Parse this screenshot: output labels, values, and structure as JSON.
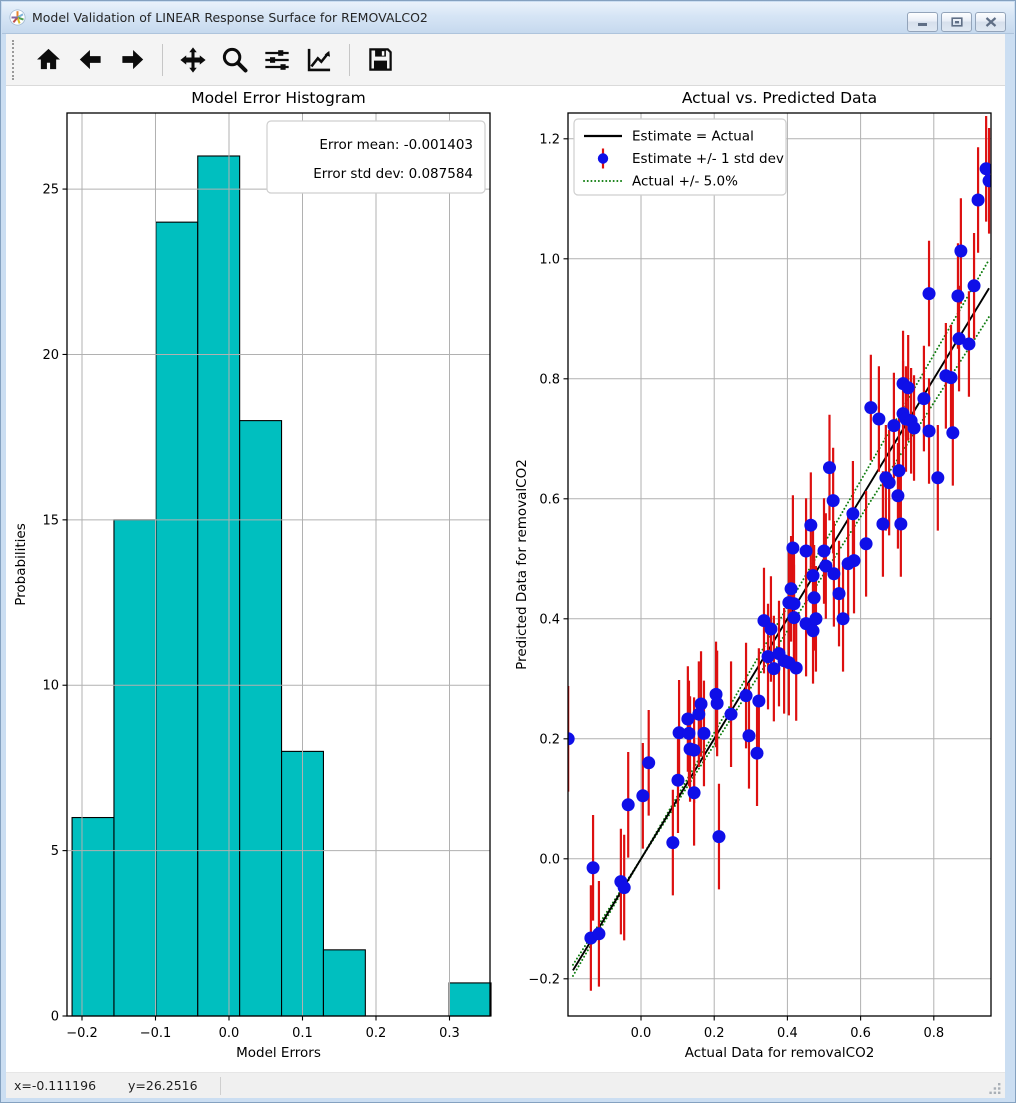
{
  "window": {
    "title": "Model Validation of LINEAR Response Surface for REMOVALCO2",
    "controls": {
      "minimize": "minimize",
      "maximize": "maximize",
      "close": "close"
    }
  },
  "toolbar": {
    "buttons": [
      {
        "name": "home",
        "icon": "home-icon"
      },
      {
        "name": "back",
        "icon": "back-arrow-icon"
      },
      {
        "name": "forward",
        "icon": "forward-arrow-icon"
      },
      {
        "name": "pan",
        "icon": "move-cross-icon"
      },
      {
        "name": "zoom",
        "icon": "magnifier-icon"
      },
      {
        "name": "configure-subplots",
        "icon": "sliders-icon"
      },
      {
        "name": "figure-options",
        "icon": "line-chart-icon"
      },
      {
        "name": "save",
        "icon": "floppy-disk-icon"
      }
    ]
  },
  "statusbar": {
    "x_readout": "x=-0.111196",
    "y_readout": "y=26.2516"
  },
  "chart_data": [
    {
      "type": "bar",
      "subtype": "histogram",
      "title": "Model Error Histogram",
      "xlabel": "Model Errors",
      "ylabel": "Probabilities",
      "bar_color": "#00bfbf",
      "edge_color": "#000000",
      "grid": true,
      "grid_above_bars": true,
      "xlim": [
        -0.2204,
        0.3551
      ],
      "ylim": [
        0,
        27.3
      ],
      "bin_start": -0.2135,
      "bin_width": 0.057,
      "counts": [
        6,
        15,
        24,
        26,
        18,
        8,
        2,
        0,
        0,
        1
      ],
      "xticks": [
        {
          "v": -0.2,
          "label": "−0.2"
        },
        {
          "v": -0.1,
          "label": "−0.1"
        },
        {
          "v": 0.0,
          "label": "0.0"
        },
        {
          "v": 0.1,
          "label": "0.1"
        },
        {
          "v": 0.2,
          "label": "0.2"
        },
        {
          "v": 0.3,
          "label": "0.3"
        }
      ],
      "yticks": [
        {
          "v": 0,
          "label": "0"
        },
        {
          "v": 5,
          "label": "5"
        },
        {
          "v": 10,
          "label": "10"
        },
        {
          "v": 15,
          "label": "15"
        },
        {
          "v": 20,
          "label": "20"
        },
        {
          "v": 25,
          "label": "25"
        }
      ],
      "annotation_lines": [
        "Error mean: -0.001403",
        "Error std dev: 0.087584"
      ],
      "stats": {
        "error_mean": -0.001403,
        "error_std_dev": 0.087584
      }
    },
    {
      "type": "scatter",
      "title": "Actual vs. Predicted Data",
      "xlabel": "Actual Data for removalCO2",
      "ylabel": "Predicted Data for removalCO2",
      "grid": true,
      "xlim": [
        -0.1995,
        0.9563
      ],
      "ylim": [
        -0.262,
        1.243
      ],
      "xticks": [
        {
          "v": 0.0,
          "label": "0.0"
        },
        {
          "v": 0.2,
          "label": "0.2"
        },
        {
          "v": 0.4,
          "label": "0.4"
        },
        {
          "v": 0.6,
          "label": "0.6"
        },
        {
          "v": 0.8,
          "label": "0.8"
        }
      ],
      "yticks": [
        {
          "v": -0.2,
          "label": "−0.2"
        },
        {
          "v": 0.0,
          "label": "0.0"
        },
        {
          "v": 0.2,
          "label": "0.2"
        },
        {
          "v": 0.4,
          "label": "0.4"
        },
        {
          "v": 0.6,
          "label": "0.6"
        },
        {
          "v": 0.8,
          "label": "0.8"
        },
        {
          "v": 1.0,
          "label": "1.0"
        },
        {
          "v": 1.2,
          "label": "1.2"
        }
      ],
      "legend": [
        {
          "label": "Estimate = Actual",
          "type": "line",
          "color": "#000000"
        },
        {
          "label": "Estimate +/- 1 std dev",
          "type": "errorbar",
          "color": "#0f0fe8",
          "err_color": "#dd1010"
        },
        {
          "label": "Actual +/- 5.0%",
          "type": "dotted",
          "color": "#0f7d0f"
        }
      ],
      "identity_line": {
        "x0": -0.186,
        "x1": 0.951,
        "color": "#000000"
      },
      "tolerance_band_pct": 5.0,
      "band_factors": [
        1.05,
        0.95
      ],
      "band_color": "#0f7d0f",
      "point_color": "#0f0fe8",
      "err_color": "#dd1010",
      "yerr": 0.088,
      "points": [
        [
          -0.199,
          0.2
        ],
        [
          -0.137,
          -0.132
        ],
        [
          -0.115,
          -0.125
        ],
        [
          -0.131,
          -0.015
        ],
        [
          -0.055,
          -0.038
        ],
        [
          -0.046,
          -0.048
        ],
        [
          -0.035,
          0.09
        ],
        [
          0.005,
          0.105
        ],
        [
          0.021,
          0.16
        ],
        [
          0.087,
          0.027
        ],
        [
          0.101,
          0.131
        ],
        [
          0.104,
          0.21
        ],
        [
          0.128,
          0.233
        ],
        [
          0.131,
          0.209
        ],
        [
          0.134,
          0.183
        ],
        [
          0.145,
          0.181
        ],
        [
          0.145,
          0.11
        ],
        [
          0.158,
          0.241
        ],
        [
          0.164,
          0.258
        ],
        [
          0.172,
          0.209
        ],
        [
          0.205,
          0.274
        ],
        [
          0.208,
          0.259
        ],
        [
          0.213,
          0.037
        ],
        [
          0.246,
          0.241
        ],
        [
          0.287,
          0.272
        ],
        [
          0.295,
          0.205
        ],
        [
          0.317,
          0.176
        ],
        [
          0.322,
          0.263
        ],
        [
          0.336,
          0.397
        ],
        [
          0.347,
          0.337
        ],
        [
          0.355,
          0.383
        ],
        [
          0.363,
          0.317
        ],
        [
          0.377,
          0.342
        ],
        [
          0.391,
          0.33
        ],
        [
          0.404,
          0.327
        ],
        [
          0.404,
          0.427
        ],
        [
          0.41,
          0.45
        ],
        [
          0.415,
          0.518
        ],
        [
          0.418,
          0.425
        ],
        [
          0.418,
          0.402
        ],
        [
          0.424,
          0.318
        ],
        [
          0.451,
          0.513
        ],
        [
          0.451,
          0.392
        ],
        [
          0.464,
          0.556
        ],
        [
          0.47,
          0.472
        ],
        [
          0.47,
          0.38
        ],
        [
          0.473,
          0.435
        ],
        [
          0.478,
          0.4
        ],
        [
          0.5,
          0.513
        ],
        [
          0.505,
          0.488
        ],
        [
          0.515,
          0.652
        ],
        [
          0.525,
          0.597
        ],
        [
          0.527,
          0.475
        ],
        [
          0.541,
          0.442
        ],
        [
          0.552,
          0.4
        ],
        [
          0.566,
          0.492
        ],
        [
          0.579,
          0.575
        ],
        [
          0.582,
          0.497
        ],
        [
          0.615,
          0.525
        ],
        [
          0.628,
          0.752
        ],
        [
          0.65,
          0.733
        ],
        [
          0.661,
          0.558
        ],
        [
          0.669,
          0.635
        ],
        [
          0.678,
          0.627
        ],
        [
          0.691,
          0.722
        ],
        [
          0.702,
          0.605
        ],
        [
          0.705,
          0.647
        ],
        [
          0.71,
          0.558
        ],
        [
          0.716,
          0.742
        ],
        [
          0.716,
          0.792
        ],
        [
          0.724,
          0.733
        ],
        [
          0.73,
          0.785
        ],
        [
          0.738,
          0.73
        ],
        [
          0.746,
          0.718
        ],
        [
          0.773,
          0.767
        ],
        [
          0.787,
          0.713
        ],
        [
          0.787,
          0.942
        ],
        [
          0.811,
          0.635
        ],
        [
          0.833,
          0.805
        ],
        [
          0.847,
          0.802
        ],
        [
          0.852,
          0.71
        ],
        [
          0.866,
          0.938
        ],
        [
          0.869,
          0.867
        ],
        [
          0.874,
          1.013
        ],
        [
          0.896,
          0.858
        ],
        [
          0.91,
          0.955
        ],
        [
          0.921,
          1.098
        ],
        [
          0.943,
          1.15
        ],
        [
          0.951,
          1.13
        ]
      ]
    }
  ]
}
